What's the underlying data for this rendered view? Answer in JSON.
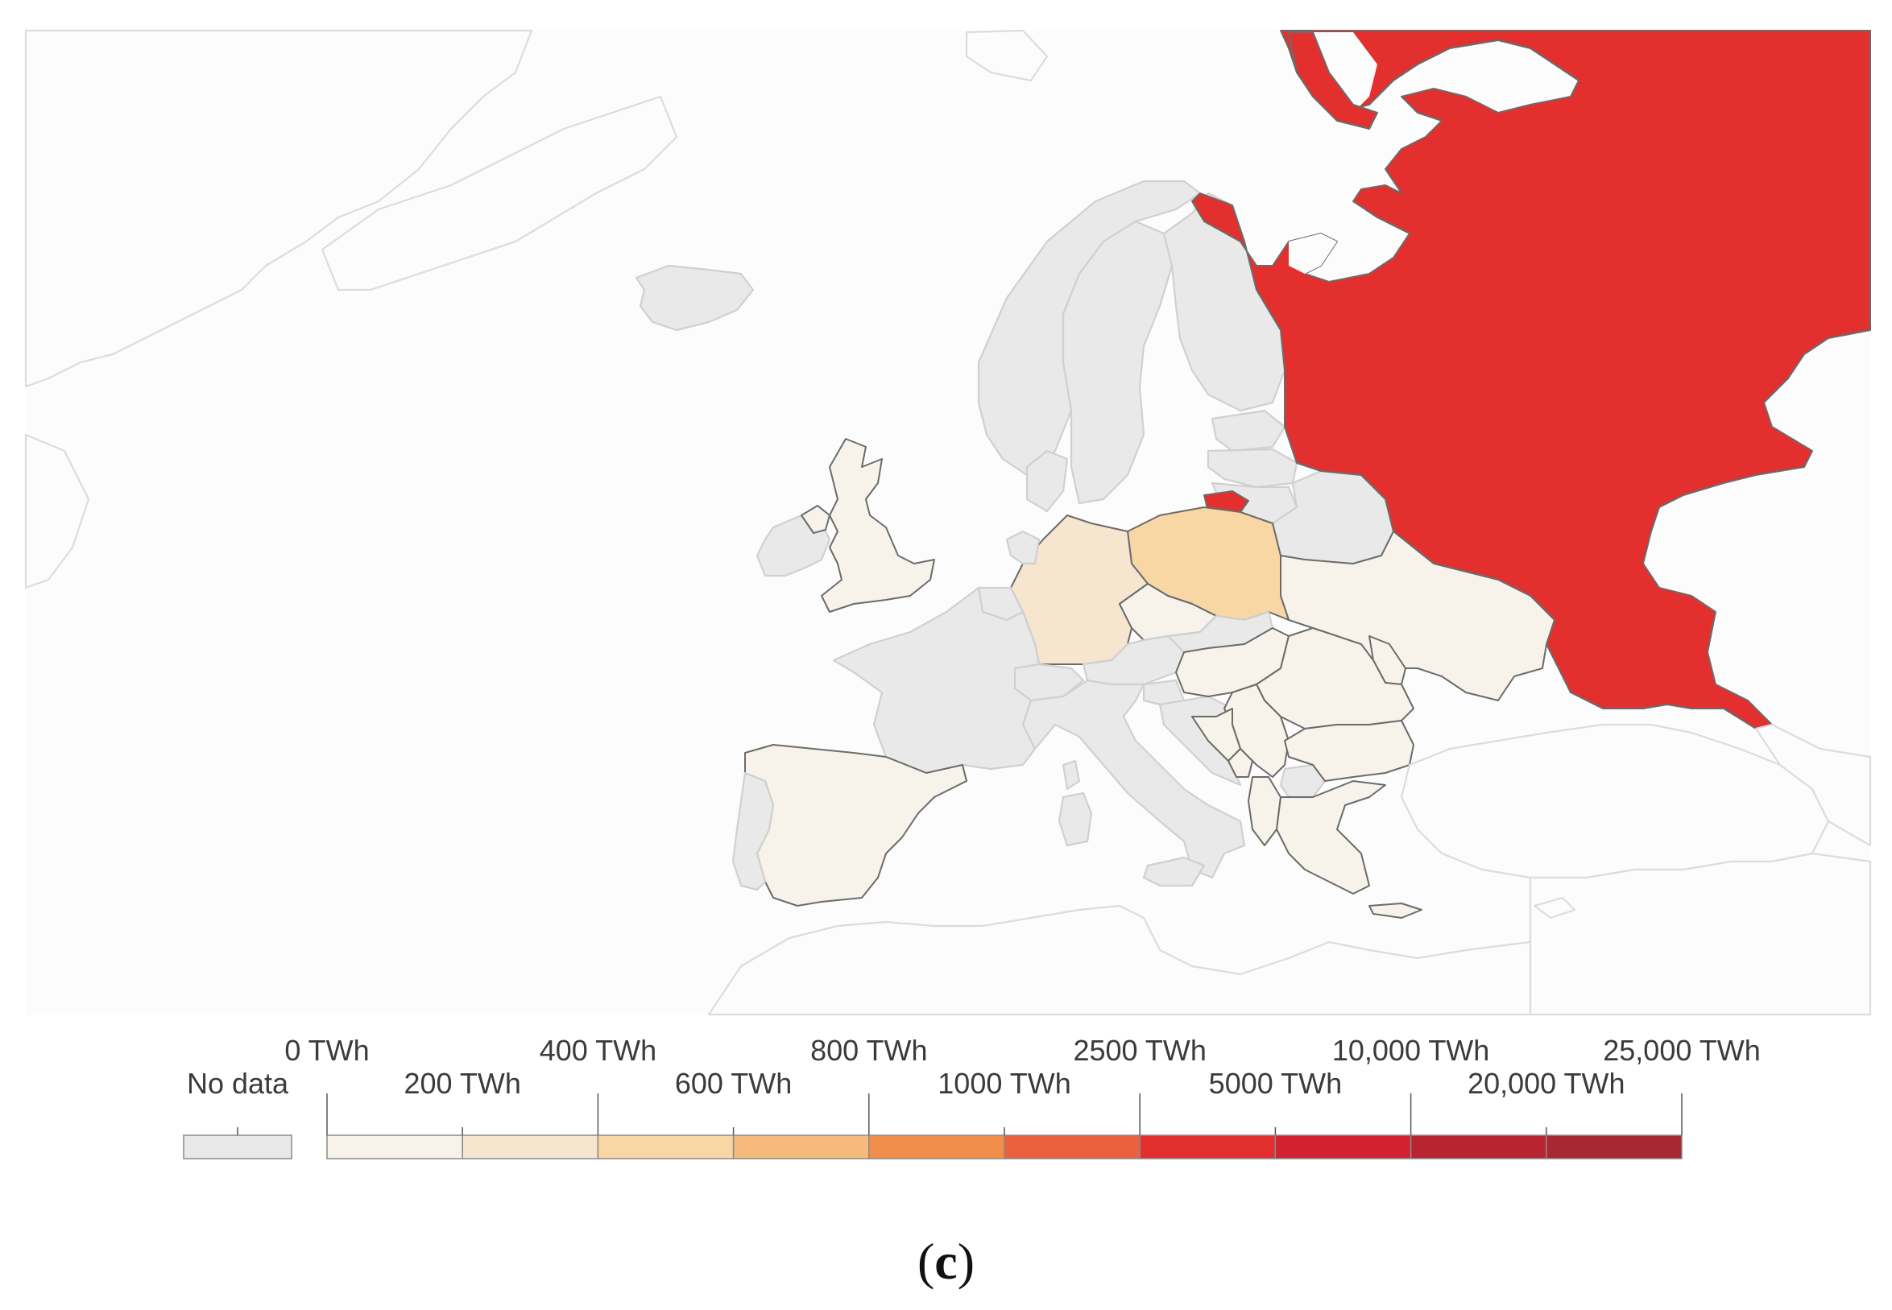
{
  "map": {
    "region": "Europe",
    "colors": {
      "no_data": "#e9e9e9",
      "background": "#fcfcfc",
      "bins": [
        "#f8f3ea",
        "#f6e6cf",
        "#f9d7a4",
        "#f6bb7c",
        "#f28d4a",
        "#eb6140",
        "#e3302f",
        "#d22130",
        "#b8242f",
        "#a92730"
      ]
    },
    "countries": [
      {
        "name": "Russia",
        "bin": 6
      },
      {
        "name": "Kaliningrad",
        "bin": 6
      },
      {
        "name": "Poland",
        "bin": 2
      },
      {
        "name": "Germany",
        "bin": 1
      },
      {
        "name": "United Kingdom",
        "bin": 0
      },
      {
        "name": "Spain",
        "bin": 0
      },
      {
        "name": "Czechia",
        "bin": 0
      },
      {
        "name": "Ukraine",
        "bin": 0
      },
      {
        "name": "Hungary",
        "bin": 0
      },
      {
        "name": "Romania",
        "bin": 0
      },
      {
        "name": "Bulgaria",
        "bin": 0
      },
      {
        "name": "Serbia",
        "bin": 0
      },
      {
        "name": "Bosnia and Herzegovina",
        "bin": 0
      },
      {
        "name": "Greece",
        "bin": 0
      },
      {
        "name": "Moldova",
        "bin": 0
      },
      {
        "name": "France",
        "bin": null
      },
      {
        "name": "Italy",
        "bin": null
      },
      {
        "name": "Norway",
        "bin": null
      },
      {
        "name": "Sweden",
        "bin": null
      },
      {
        "name": "Finland",
        "bin": null
      },
      {
        "name": "Belarus",
        "bin": null
      },
      {
        "name": "Ireland",
        "bin": null
      },
      {
        "name": "Portugal",
        "bin": null
      },
      {
        "name": "Iceland",
        "bin": null
      }
    ]
  },
  "legend": {
    "no_data_label": "No data",
    "upper_labels": [
      "0 TWh",
      "400 TWh",
      "800 TWh",
      "2500 TWh",
      "10,000 TWh",
      "25,000 TWh"
    ],
    "lower_labels": [
      "200 TWh",
      "600 TWh",
      "1000 TWh",
      "5000 TWh",
      "20,000 TWh"
    ]
  },
  "caption": {
    "open": "(",
    "letter": "c",
    "close": ")"
  }
}
